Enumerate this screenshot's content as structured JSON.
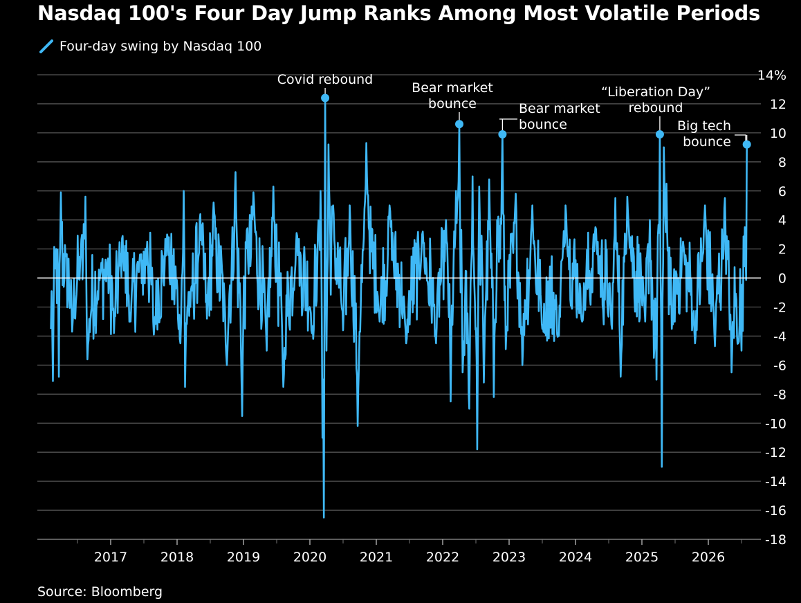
{
  "title": "Nasdaq 100's Four Day Jump Ranks Among Most Volatile Periods",
  "source": "Source: Bloomberg",
  "colors": {
    "background": "#000000",
    "series": "#3fb8f5",
    "grid": "#555555",
    "zero": "#ffffff",
    "text": "#ffffff"
  },
  "chart_data": {
    "type": "line",
    "title": "Nasdaq 100's Four Day Jump Ranks Among Most Volatile Periods",
    "xlabel": "",
    "ylabel": "",
    "ylim": [
      -18,
      14
    ],
    "y_unit": "%",
    "y_ticks": [
      14,
      12,
      10,
      8,
      6,
      4,
      2,
      0,
      -2,
      -4,
      -6,
      -8,
      -10,
      -12,
      -14,
      -16,
      -18
    ],
    "y_tick_labels": [
      "14%",
      "12",
      "10",
      "8",
      "6",
      "4",
      "2",
      "0",
      "-2",
      "-4",
      "-6",
      "-8",
      "-10",
      "-12",
      "-14",
      "-16",
      "-18"
    ],
    "xlim": [
      2016.1,
      2026.75
    ],
    "x_ticks": [
      "2017",
      "2018",
      "2019",
      "2020",
      "2021",
      "2022",
      "2023",
      "2024",
      "2025",
      "2026"
    ],
    "grid": true,
    "legend_position": "top-left",
    "series": [
      {
        "name": "Four-day swing by Nasdaq 100",
        "color": "#3fb8f5",
        "key_points": [
          [
            2016.1,
            -3.5
          ],
          [
            2016.13,
            -7.1
          ],
          [
            2016.18,
            2.0
          ],
          [
            2016.22,
            -6.8
          ],
          [
            2016.25,
            5.9
          ],
          [
            2016.32,
            1.5
          ],
          [
            2016.42,
            -3.7
          ],
          [
            2016.55,
            1.8
          ],
          [
            2016.62,
            5.6
          ],
          [
            2016.65,
            -5.6
          ],
          [
            2016.85,
            0.4
          ],
          [
            2016.95,
            1.0
          ],
          [
            2017.05,
            -3.8
          ],
          [
            2017.18,
            2.9
          ],
          [
            2017.3,
            -3.0
          ],
          [
            2017.45,
            1.5
          ],
          [
            2017.55,
            2.5
          ],
          [
            2017.65,
            -3.9
          ],
          [
            2017.85,
            3.0
          ],
          [
            2018.05,
            -4.5
          ],
          [
            2018.1,
            6.0
          ],
          [
            2018.12,
            -7.5
          ],
          [
            2018.2,
            -2.0
          ],
          [
            2018.35,
            4.4
          ],
          [
            2018.45,
            -2.8
          ],
          [
            2018.55,
            5.2
          ],
          [
            2018.75,
            -6.0
          ],
          [
            2018.88,
            7.3
          ],
          [
            2018.98,
            -9.5
          ],
          [
            2019.05,
            3.3
          ],
          [
            2019.15,
            5.9
          ],
          [
            2019.35,
            -5.0
          ],
          [
            2019.45,
            6.3
          ],
          [
            2019.6,
            -7.5
          ],
          [
            2019.8,
            3.1
          ],
          [
            2020.05,
            -4.2
          ],
          [
            2020.12,
            3.0
          ],
          [
            2020.16,
            6.0
          ],
          [
            2020.19,
            -11.0
          ],
          [
            2020.21,
            -16.5
          ],
          [
            2020.23,
            12.4
          ],
          [
            2020.25,
            -5.0
          ],
          [
            2020.28,
            9.2
          ],
          [
            2020.35,
            5.0
          ],
          [
            2020.5,
            -3.6
          ],
          [
            2020.6,
            5.0
          ],
          [
            2020.72,
            -10.2
          ],
          [
            2020.85,
            9.3
          ],
          [
            2021.05,
            -3.0
          ],
          [
            2021.2,
            5.0
          ],
          [
            2021.45,
            -4.5
          ],
          [
            2021.7,
            3.2
          ],
          [
            2021.9,
            -4.5
          ],
          [
            2022.05,
            4.0
          ],
          [
            2022.12,
            -8.5
          ],
          [
            2022.2,
            6.0
          ],
          [
            2022.25,
            10.6
          ],
          [
            2022.3,
            -6.5
          ],
          [
            2022.4,
            -9.0
          ],
          [
            2022.45,
            7.0
          ],
          [
            2022.52,
            -11.8
          ],
          [
            2022.55,
            6.3
          ],
          [
            2022.62,
            -7.2
          ],
          [
            2022.7,
            6.8
          ],
          [
            2022.77,
            -8.2
          ],
          [
            2022.82,
            4.0
          ],
          [
            2022.9,
            9.9
          ],
          [
            2022.95,
            -4.9
          ],
          [
            2023.1,
            5.8
          ],
          [
            2023.2,
            -6.0
          ],
          [
            2023.35,
            5.0
          ],
          [
            2023.5,
            -3.5
          ],
          [
            2023.75,
            -4.0
          ],
          [
            2023.85,
            5.0
          ],
          [
            2024.1,
            -3.0
          ],
          [
            2024.3,
            3.5
          ],
          [
            2024.55,
            -3.5
          ],
          [
            2024.6,
            5.5
          ],
          [
            2024.68,
            -6.8
          ],
          [
            2024.78,
            5.6
          ],
          [
            2025.05,
            -3.0
          ],
          [
            2025.12,
            4.0
          ],
          [
            2025.18,
            -5.5
          ],
          [
            2025.22,
            -7.0
          ],
          [
            2025.27,
            9.9
          ],
          [
            2025.3,
            -13.0
          ],
          [
            2025.33,
            9.0
          ],
          [
            2025.37,
            6.5
          ],
          [
            2025.45,
            -3.5
          ],
          [
            2025.62,
            2.5
          ],
          [
            2025.8,
            -4.5
          ],
          [
            2025.95,
            5.0
          ],
          [
            2026.1,
            -4.7
          ],
          [
            2026.25,
            5.5
          ],
          [
            2026.35,
            -6.5
          ],
          [
            2026.45,
            -4.5
          ],
          [
            2026.5,
            -5.0
          ],
          [
            2026.55,
            3.5
          ],
          [
            2026.58,
            9.2
          ]
        ]
      }
    ],
    "annotations": [
      {
        "text": [
          "Covid rebound"
        ],
        "x": 2020.23,
        "y": 12.4
      },
      {
        "text": [
          "Bear market",
          "bounce"
        ],
        "x": 2022.25,
        "y": 10.6
      },
      {
        "text": [
          "Bear market",
          "bounce"
        ],
        "x": 2022.9,
        "y": 9.9
      },
      {
        "text": [
          "“Liberation Day”",
          "rebound"
        ],
        "x": 2025.27,
        "y": 9.9
      },
      {
        "text": [
          "Big tech",
          "bounce"
        ],
        "x": 2026.58,
        "y": 9.2
      }
    ]
  }
}
